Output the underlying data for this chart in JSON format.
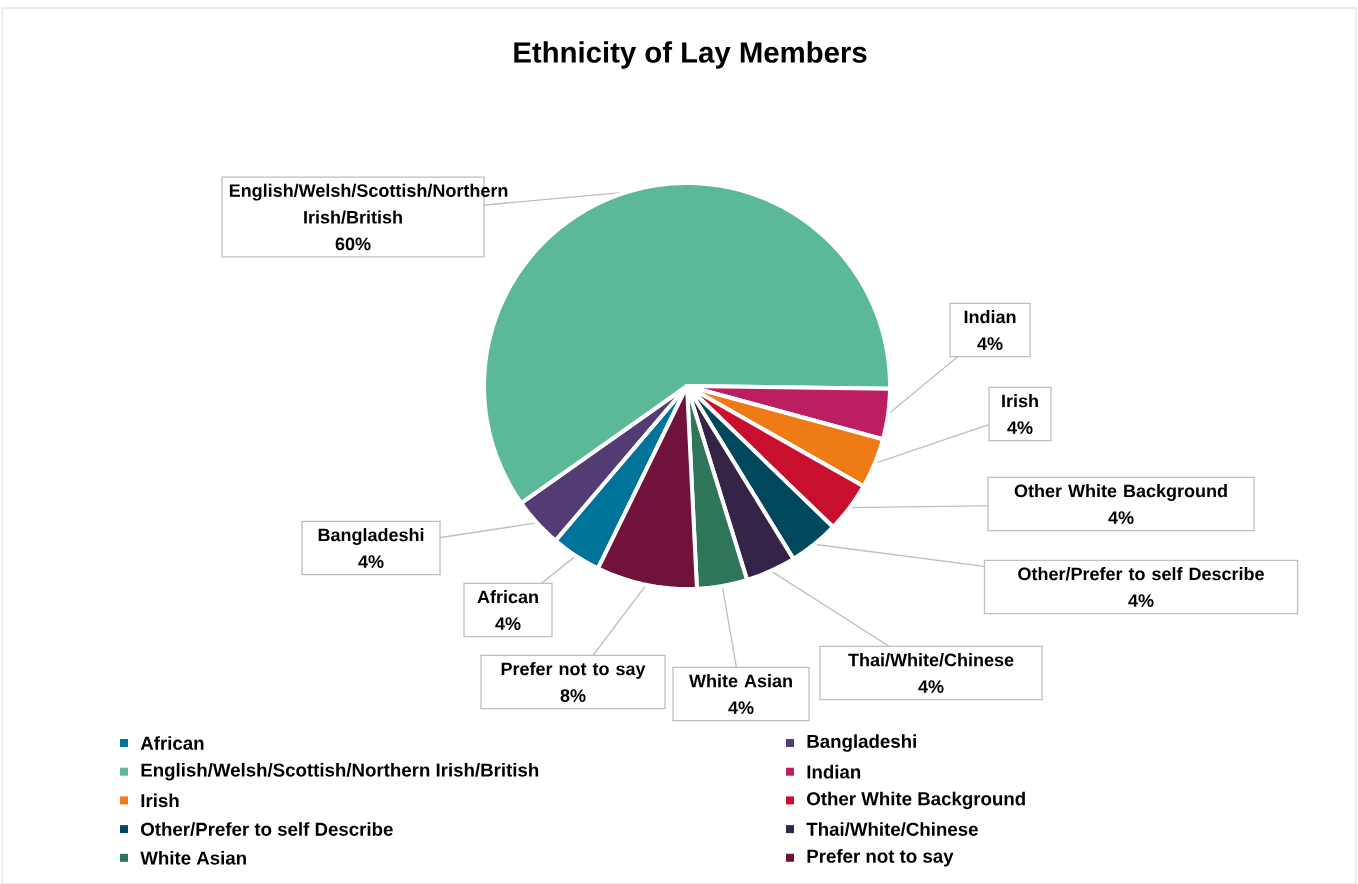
{
  "chart_data": {
    "type": "pie",
    "title": "Ethnicity of Lay Members",
    "categories": [
      "African",
      "Bangladeshi",
      "English/Welsh/Scottish/Northern Irish/British",
      "Indian",
      "Irish",
      "Other White Background",
      "Other/Prefer to self Describe",
      "Thai/White/Chinese",
      "White Asian",
      "Prefer not to say"
    ],
    "values": [
      4,
      4,
      60,
      4,
      4,
      4,
      4,
      4,
      4,
      8
    ],
    "value_labels": [
      "4%",
      "4%",
      "60%",
      "4%",
      "4%",
      "4%",
      "4%",
      "4%",
      "4%",
      "8%"
    ],
    "colors": [
      "#00739a",
      "#533c74",
      "#5bb997",
      "#bd1e62",
      "#ee7b16",
      "#c8102e",
      "#00485e",
      "#332448",
      "#2f755a",
      "#71123b"
    ],
    "legend": "bottom"
  }
}
